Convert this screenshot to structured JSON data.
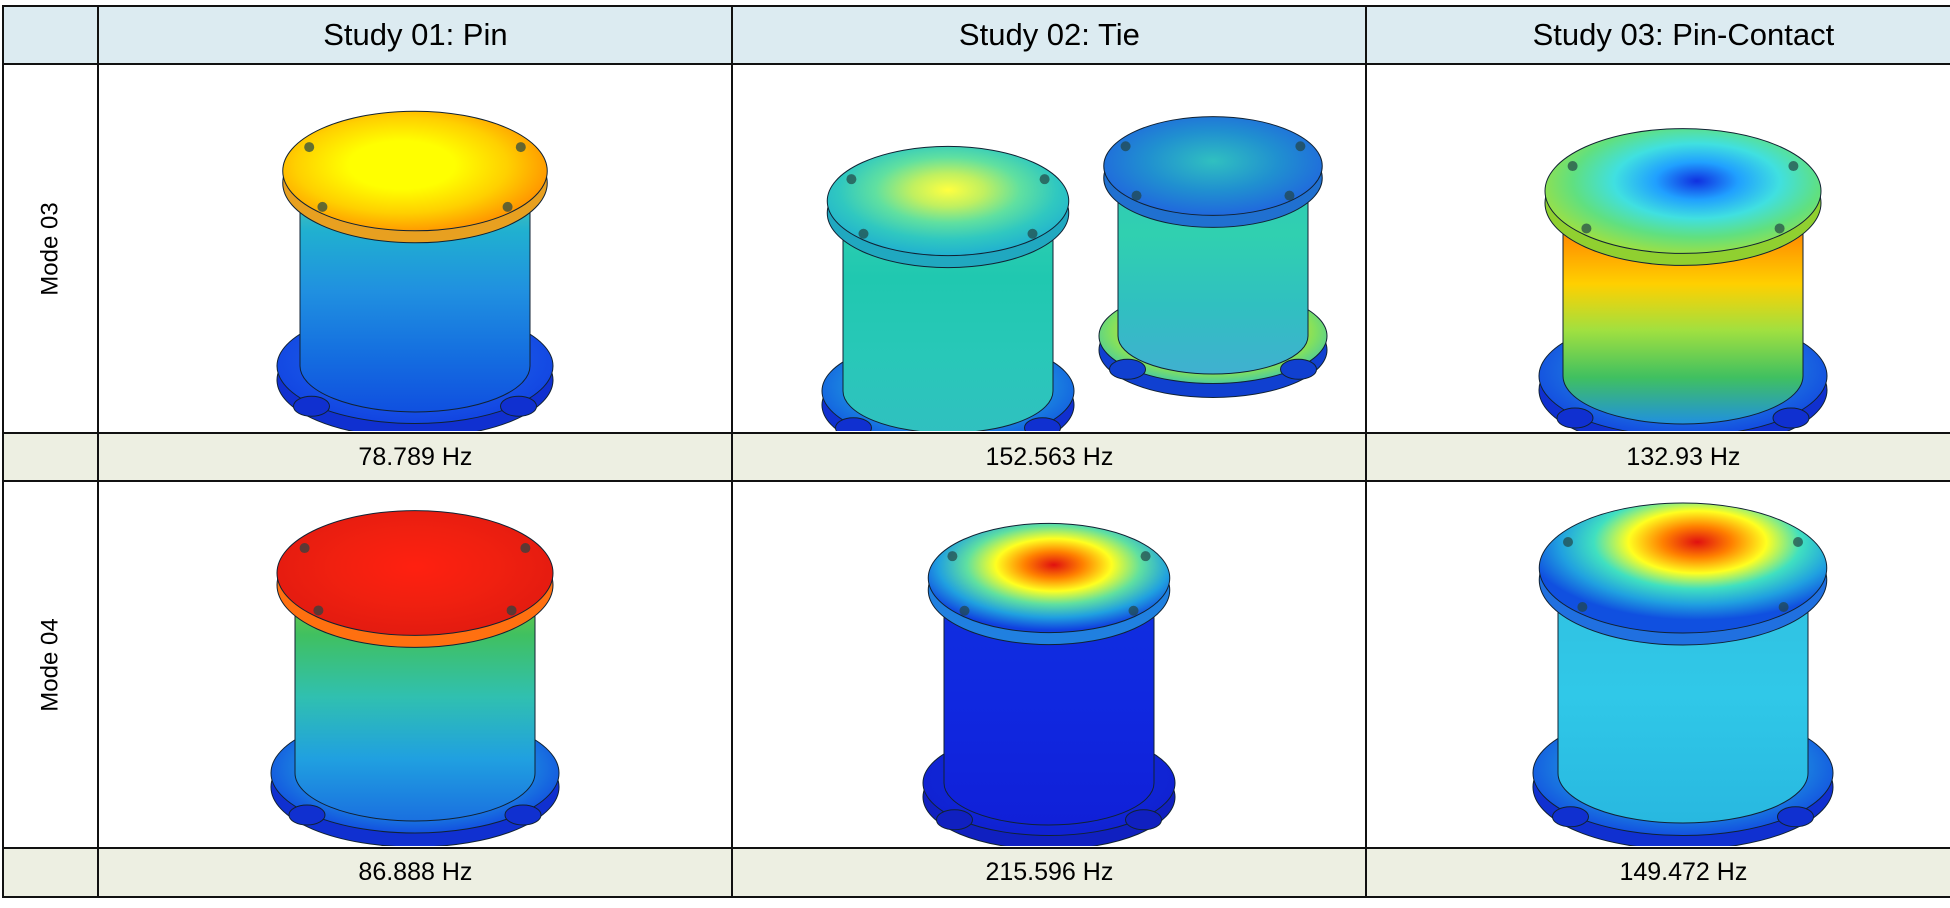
{
  "table": {
    "header": [
      "Study 01: Pin",
      "Study 02: Tie",
      "Study 03: Pin-Contact"
    ],
    "rows": [
      {
        "label": "Mode 03",
        "frequencies": [
          "78.789 Hz",
          "152.563 Hz",
          "132.93 Hz"
        ]
      },
      {
        "label": "Mode 04",
        "frequencies": [
          "86.888 Hz",
          "215.596 Hz",
          "149.472 Hz"
        ]
      }
    ]
  }
}
